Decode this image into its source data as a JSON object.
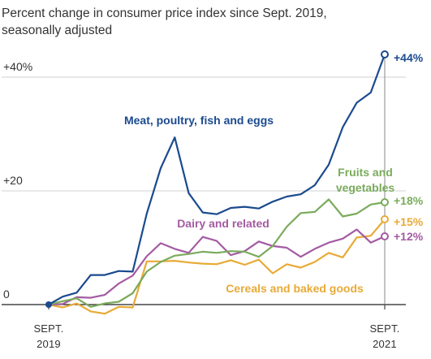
{
  "subtitle_line1": "Percent change in consumer price index since Sept. 2019,",
  "subtitle_line2": "seasonally adjusted",
  "chart_data": {
    "type": "line",
    "title": "",
    "subtitle": "Percent change in consumer price index since Sept. 2019, seasonally adjusted",
    "xlabel": "",
    "ylabel": "",
    "ylim": [
      0,
      44
    ],
    "y_ticks": [
      {
        "value": 0,
        "label": "0"
      },
      {
        "value": 20,
        "label": "+20"
      },
      {
        "value": 40,
        "label": "+40%"
      }
    ],
    "x_ticks": [
      {
        "index": 0,
        "line1": "SEPT.",
        "line2": "2019"
      },
      {
        "index": 24,
        "line1": "SEPT.",
        "line2": "2021"
      }
    ],
    "x": [
      "2019-09",
      "2019-10",
      "2019-11",
      "2019-12",
      "2020-01",
      "2020-02",
      "2020-03",
      "2020-04",
      "2020-05",
      "2020-06",
      "2020-07",
      "2020-08",
      "2020-09",
      "2020-10",
      "2020-11",
      "2020-12",
      "2021-01",
      "2021-02",
      "2021-03",
      "2021-04",
      "2021-05",
      "2021-06",
      "2021-07",
      "2021-08",
      "2021-09"
    ],
    "series": [
      {
        "name": "Meat, poultry, fish and eggs",
        "color": "#1b4a8f",
        "values": [
          0,
          1.4,
          2.1,
          5.2,
          5.2,
          5.9,
          5.8,
          16,
          24,
          29.4,
          19.6,
          16.2,
          15.9,
          17,
          17.2,
          16.9,
          18.1,
          19,
          19.4,
          21,
          24.6,
          31.2,
          35.5,
          37.3,
          44
        ]
      },
      {
        "name": "Fruits and vegetables",
        "color": "#7aab5c",
        "values": [
          0,
          0.6,
          1.1,
          -0.4,
          0.2,
          0.5,
          2,
          5.8,
          7.5,
          8.6,
          8.9,
          9.3,
          9.1,
          9.4,
          9.3,
          8.4,
          10.3,
          13.7,
          16.1,
          16.3,
          18.5,
          15.5,
          16,
          17.6,
          18
        ]
      },
      {
        "name": "Dairy and related",
        "color": "#a35ba2",
        "values": [
          0,
          0.1,
          1.3,
          1.2,
          1.7,
          3.7,
          5.1,
          8.5,
          10.8,
          9.8,
          9.1,
          11.9,
          11.2,
          8.7,
          9.4,
          11.1,
          10.3,
          10,
          8.4,
          9.8,
          10.9,
          11.6,
          13.2,
          10.9,
          12
        ]
      },
      {
        "name": "Cereals and baked goods",
        "color": "#e8aa37",
        "values": [
          0,
          -0.5,
          0.2,
          -1.2,
          -1.6,
          -0.4,
          -0.5,
          7.6,
          7.6,
          7.7,
          7.4,
          7.2,
          7.1,
          7.8,
          7,
          7.9,
          5.5,
          7.1,
          6.5,
          7.5,
          9.1,
          8.3,
          11.8,
          12.1,
          15
        ]
      }
    ],
    "series_labels": [
      {
        "lines": [
          "Meat, poultry, fish and eggs"
        ]
      },
      {
        "lines": [
          "Fruits and",
          "vegetables"
        ]
      },
      {
        "lines": [
          "Dairy and related"
        ]
      },
      {
        "lines": [
          "Cereals and baked goods"
        ]
      }
    ],
    "end_labels": [
      "+44%",
      "+18%",
      "+12%",
      "+15%"
    ],
    "grid": true,
    "legend": "none"
  }
}
